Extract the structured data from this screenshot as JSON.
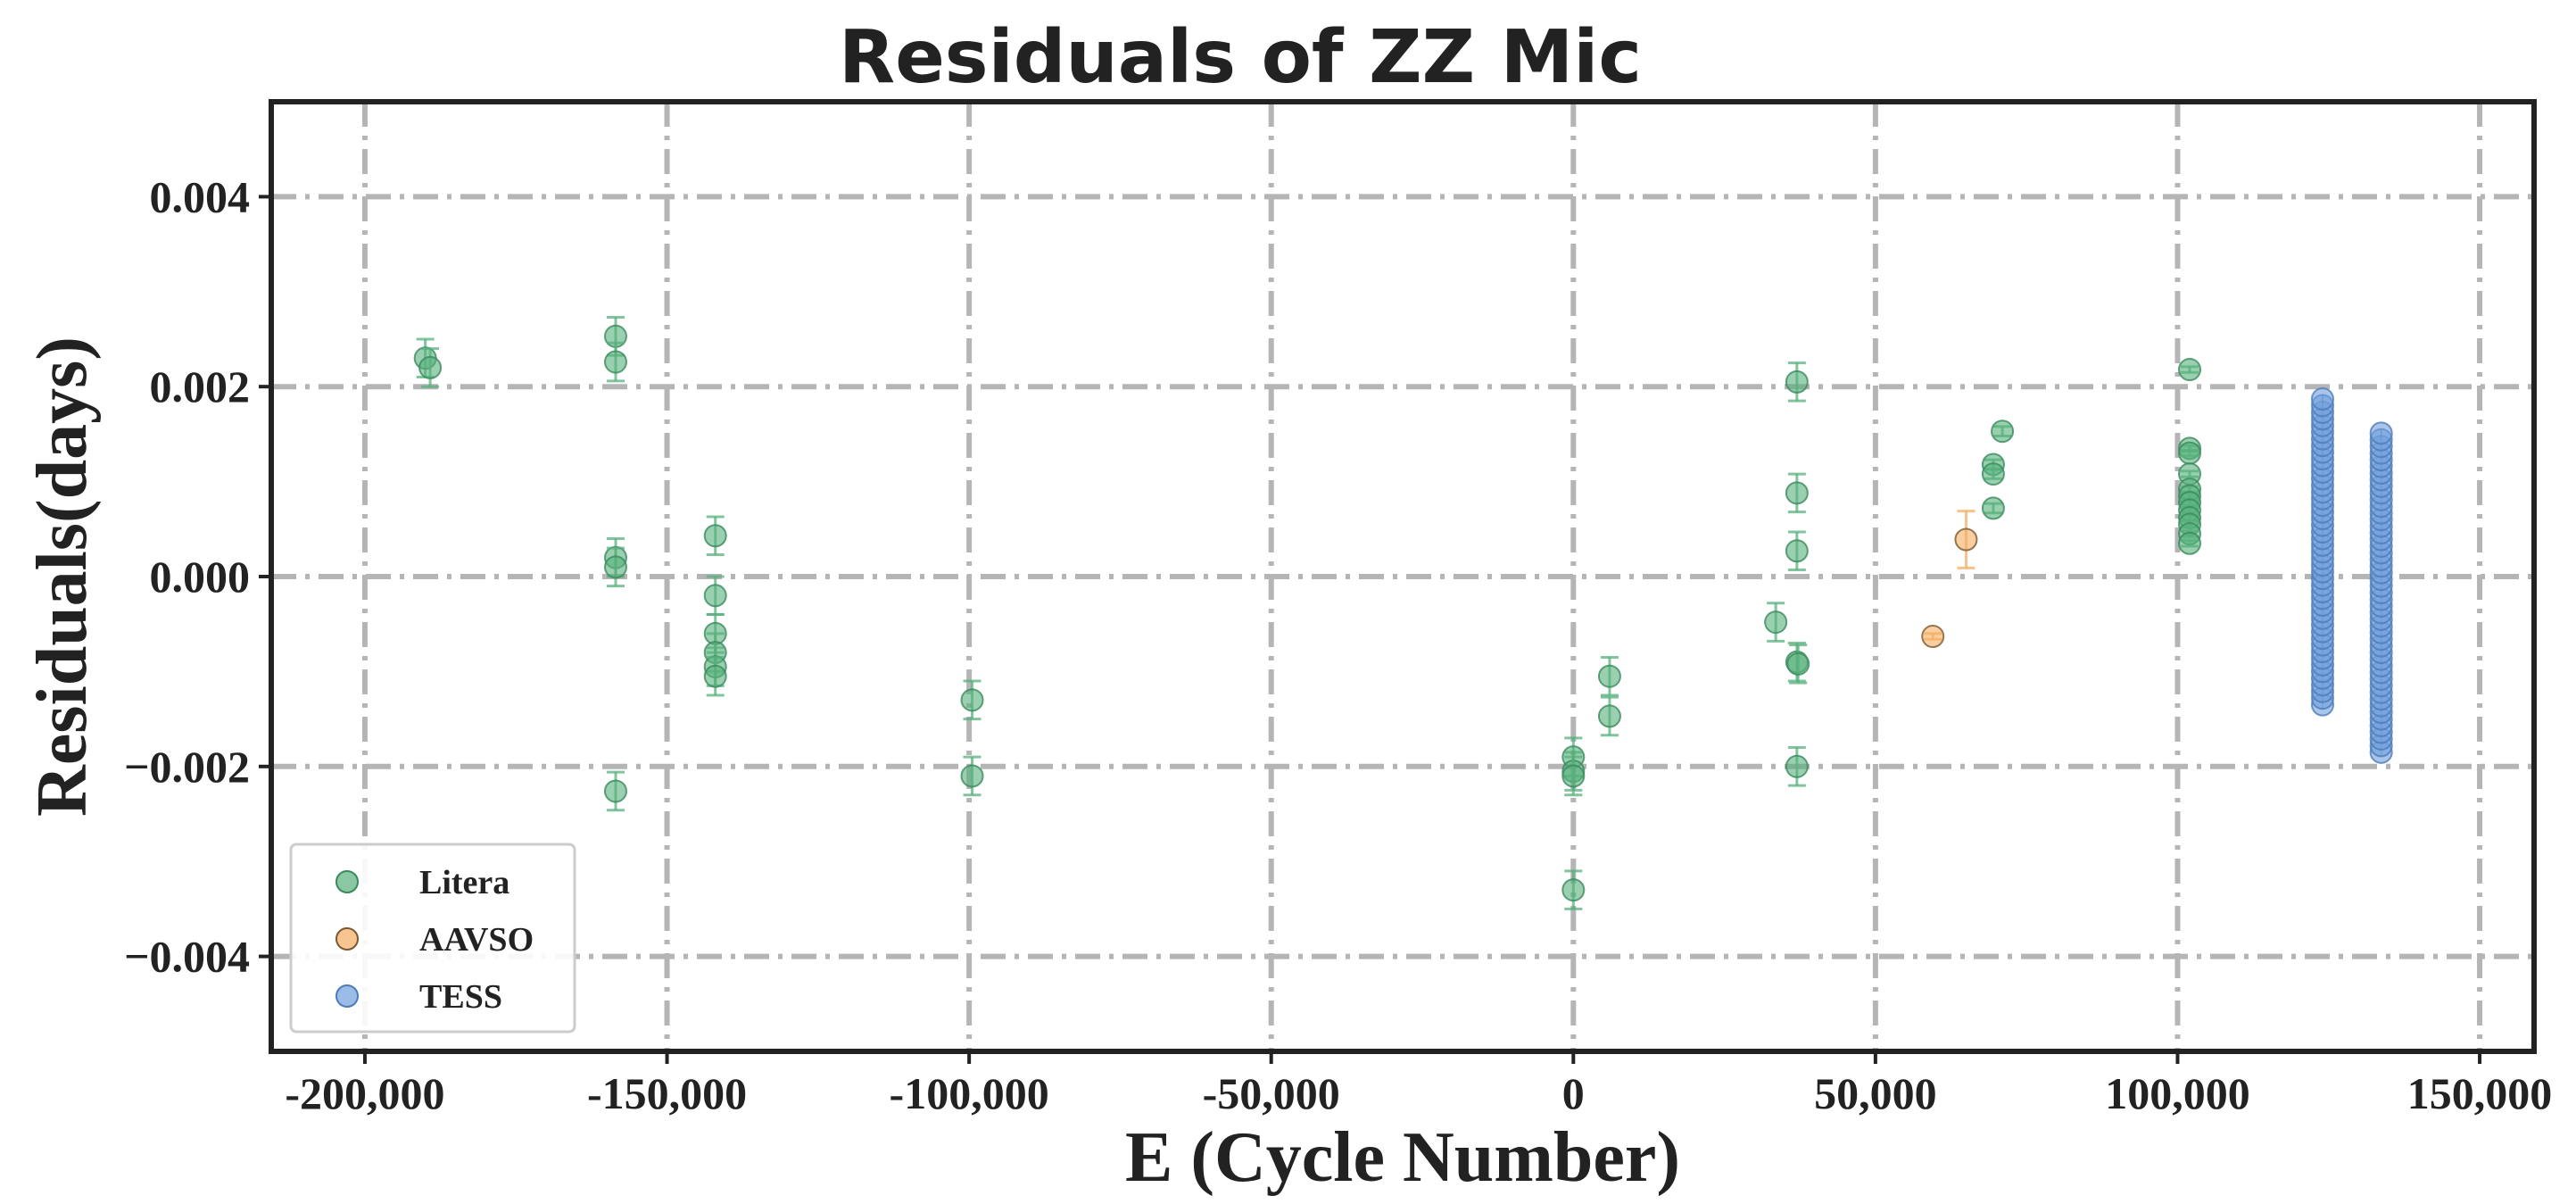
{
  "chart_data": {
    "type": "scatter",
    "title": "Residuals of ZZ Mic",
    "xlabel": "E (Cycle Number)",
    "ylabel": "Residuals(days)",
    "xlim": [
      -215500,
      159000
    ],
    "ylim": [
      -0.005,
      0.005
    ],
    "grid": true,
    "legend_position": "lower-left",
    "x_ticks": [
      -200000,
      -150000,
      -100000,
      -50000,
      0,
      50000,
      100000,
      150000
    ],
    "x_tick_labels": [
      "-200,000",
      "-150,000",
      "-100,000",
      "-50,000",
      "0",
      "50,000",
      "100,000",
      "150,000"
    ],
    "y_ticks": [
      0.004,
      0.002,
      0.0,
      -0.002,
      -0.004
    ],
    "y_tick_labels": [
      "0.004",
      "0.002",
      "0.000",
      "−0.002",
      "−0.004"
    ],
    "series": [
      {
        "name": "Litera",
        "color": "#57b07c",
        "edge": "#3a8a5c",
        "points": [
          {
            "x": -190000,
            "y": 0.0023,
            "err": 0.0002
          },
          {
            "x": -189200,
            "y": 0.0022,
            "err": 0.0002
          },
          {
            "x": -158500,
            "y": 0.00253,
            "err": 0.0002
          },
          {
            "x": -158500,
            "y": 0.00226,
            "err": 0.0002
          },
          {
            "x": -158500,
            "y": 0.0002,
            "err": 0.0002
          },
          {
            "x": -158500,
            "y": 0.0001,
            "err": 0.0002
          },
          {
            "x": -158500,
            "y": -0.00226,
            "err": 0.0002
          },
          {
            "x": -142000,
            "y": 0.00043,
            "err": 0.0002
          },
          {
            "x": -142000,
            "y": -0.0002,
            "err": 0.0002
          },
          {
            "x": -142000,
            "y": -0.0006,
            "err": 0.0002
          },
          {
            "x": -142000,
            "y": -0.0008,
            "err": 0.0002
          },
          {
            "x": -142000,
            "y": -0.00095,
            "err": 0.0002
          },
          {
            "x": -142000,
            "y": -0.00105,
            "err": 0.0002
          },
          {
            "x": -99500,
            "y": -0.0013,
            "err": 0.0002
          },
          {
            "x": -99500,
            "y": -0.0021,
            "err": 0.0002
          },
          {
            "x": 0,
            "y": -0.0019,
            "err": 0.0002
          },
          {
            "x": 0,
            "y": -0.00205,
            "err": 0.0002
          },
          {
            "x": 0,
            "y": -0.0021,
            "err": 0.0002
          },
          {
            "x": 0,
            "y": -0.0033,
            "err": 0.0002
          },
          {
            "x": 6000,
            "y": -0.00105,
            "err": 0.0002
          },
          {
            "x": 6000,
            "y": -0.00147,
            "err": 0.0002
          },
          {
            "x": 33500,
            "y": -0.00048,
            "err": 0.0002
          },
          {
            "x": 37000,
            "y": 0.00205,
            "err": 0.0002
          },
          {
            "x": 37000,
            "y": 0.00088,
            "err": 0.0002
          },
          {
            "x": 37000,
            "y": 0.00027,
            "err": 0.0002
          },
          {
            "x": 37000,
            "y": -0.0009,
            "err": 0.0002
          },
          {
            "x": 37200,
            "y": -0.00092,
            "err": 0.0002
          },
          {
            "x": 37000,
            "y": -0.002,
            "err": 0.0002
          },
          {
            "x": 69500,
            "y": 0.00118,
            "err": 5e-05
          },
          {
            "x": 69500,
            "y": 0.00108,
            "err": 5e-05
          },
          {
            "x": 69500,
            "y": 0.00072,
            "err": 5e-05
          },
          {
            "x": 71000,
            "y": 0.00153,
            "err": 5e-05
          },
          {
            "x": 102000,
            "y": 0.00218,
            "err": 3e-05
          },
          {
            "x": 102000,
            "y": 0.00135,
            "err": 3e-05
          },
          {
            "x": 102000,
            "y": 0.0013,
            "err": 3e-05
          },
          {
            "x": 102000,
            "y": 0.00108,
            "err": 3e-05
          },
          {
            "x": 102000,
            "y": 0.00092,
            "err": 3e-05
          },
          {
            "x": 102000,
            "y": 0.00085,
            "err": 3e-05
          },
          {
            "x": 102000,
            "y": 0.00078,
            "err": 3e-05
          },
          {
            "x": 102000,
            "y": 0.0007,
            "err": 3e-05
          },
          {
            "x": 102000,
            "y": 0.00062,
            "err": 3e-05
          },
          {
            "x": 102000,
            "y": 0.00055,
            "err": 3e-05
          },
          {
            "x": 102000,
            "y": 0.00045,
            "err": 3e-05
          },
          {
            "x": 102000,
            "y": 0.00035,
            "err": 3e-05
          }
        ]
      },
      {
        "name": "AAVSO",
        "color": "#f5ad63",
        "edge": "#7a5a30",
        "points": [
          {
            "x": 59500,
            "y": -0.00063,
            "err": 3e-05
          },
          {
            "x": 65000,
            "y": 0.00039,
            "err": 0.0003
          }
        ]
      },
      {
        "name": "TESS",
        "color": "#6f9fdc",
        "edge": "#4d7cb8",
        "clusters": [
          {
            "x": 124000,
            "ymin": -0.00135,
            "ymax": 0.00188,
            "step": 7e-05
          },
          {
            "x": 133700,
            "ymin": -0.00185,
            "ymax": 0.00157,
            "step": 7e-05
          }
        ]
      }
    ]
  }
}
